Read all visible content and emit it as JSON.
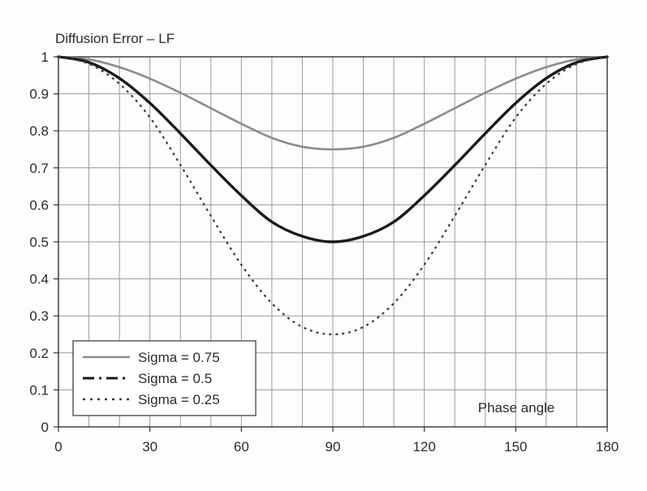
{
  "chart_data": {
    "type": "line",
    "title": "Diffusion Error – LF",
    "xlabel": "Phase angle",
    "ylabel": "",
    "xlim": [
      0,
      180
    ],
    "ylim": [
      0,
      1
    ],
    "x_ticks": [
      0,
      30,
      60,
      90,
      120,
      150,
      180
    ],
    "y_ticks": [
      0,
      0.1,
      0.2,
      0.3,
      0.4,
      0.5,
      0.6,
      0.7,
      0.8,
      0.9,
      1
    ],
    "x_grid_step": 10,
    "grid": true,
    "legend_position": "bottom-left",
    "x": [
      0,
      10,
      20,
      30,
      40,
      50,
      60,
      70,
      80,
      90,
      100,
      110,
      120,
      130,
      140,
      150,
      160,
      170,
      180
    ],
    "series": [
      {
        "name": "Sigma = 0.75",
        "style": "solid",
        "color": "#8c8c8c",
        "values": [
          1.0,
          0.993,
          0.972,
          0.941,
          0.903,
          0.861,
          0.819,
          0.781,
          0.757,
          0.75,
          0.757,
          0.781,
          0.819,
          0.861,
          0.903,
          0.941,
          0.972,
          0.993,
          1.0
        ]
      },
      {
        "name": "Sigma = 0.5",
        "style": "dashdot",
        "color": "#1a1a1a",
        "values": [
          1.0,
          0.985,
          0.942,
          0.875,
          0.793,
          0.707,
          0.625,
          0.554,
          0.515,
          0.5,
          0.515,
          0.554,
          0.625,
          0.707,
          0.793,
          0.875,
          0.942,
          0.985,
          1.0
        ]
      },
      {
        "name": "Sigma = 0.25",
        "style": "dotted",
        "color": "#3a3a3a",
        "values": [
          1.0,
          0.981,
          0.927,
          0.836,
          0.708,
          0.57,
          0.438,
          0.334,
          0.27,
          0.25,
          0.27,
          0.334,
          0.438,
          0.57,
          0.708,
          0.836,
          0.927,
          0.981,
          1.0
        ]
      }
    ]
  }
}
